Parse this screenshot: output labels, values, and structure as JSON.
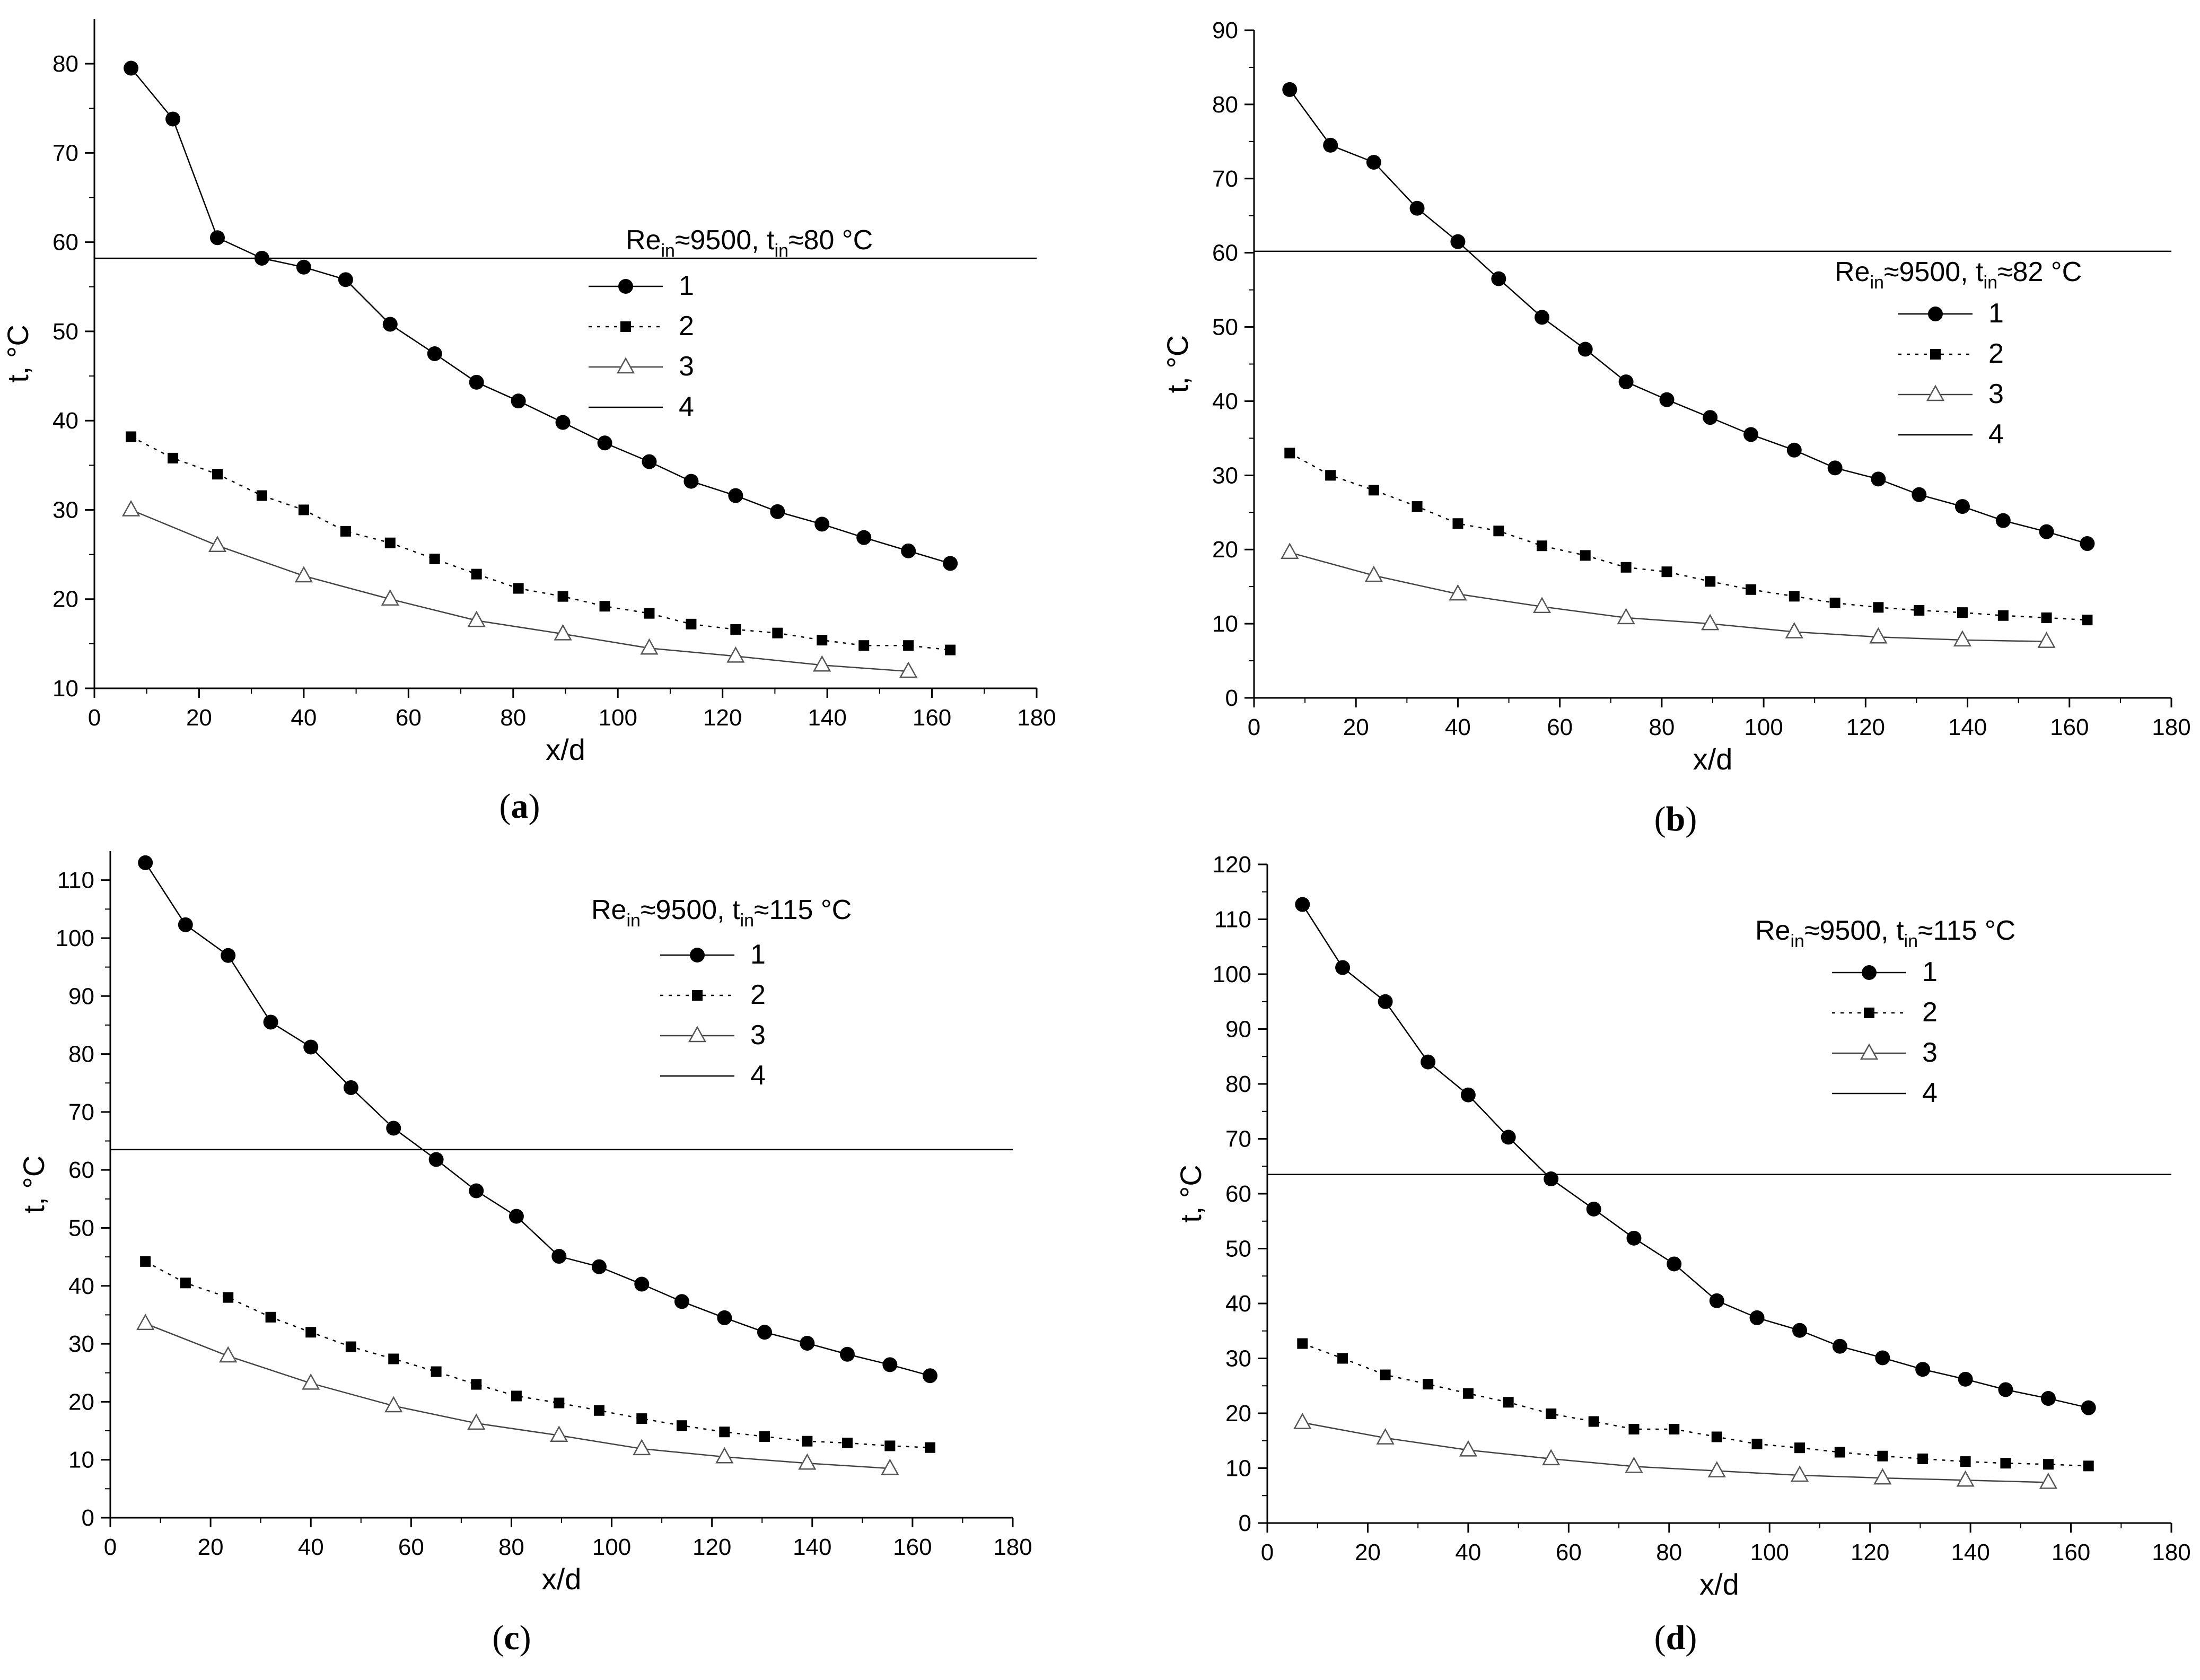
{
  "figure": {
    "panel_labels": [
      "(a)",
      "(b)",
      "(c)",
      "(d)"
    ]
  },
  "chart_data": [
    {
      "type": "line",
      "panel": "a",
      "panel_label_parts": {
        "open": "(",
        "letter": "a",
        "close": ")"
      },
      "xlabel": "x/d",
      "ylabel": "t, °C",
      "xlim": [
        0,
        180
      ],
      "ylim": [
        10,
        85
      ],
      "xticks": [
        0,
        20,
        40,
        60,
        80,
        100,
        120,
        140,
        160,
        180
      ],
      "yticks": [
        10,
        20,
        30,
        40,
        50,
        60,
        70,
        80
      ],
      "legend_title": {
        "re": "Re",
        "re_sub": "in",
        "mid": "≈9500, t",
        "t_sub": "in",
        "value": "≈80 °C"
      },
      "series": [
        {
          "name": "1",
          "marker": "circle",
          "dash": "solid",
          "x": [
            7,
            15,
            23.5,
            32,
            40,
            48,
            56.5,
            65,
            73,
            81,
            89.5,
            97.5,
            106,
            114,
            122.5,
            130.5,
            139,
            147,
            155.5,
            163.5
          ],
          "y": [
            79.5,
            73.8,
            60.5,
            58.2,
            57.2,
            55.8,
            50.8,
            47.5,
            44.3,
            42.2,
            39.8,
            37.5,
            35.4,
            33.2,
            31.6,
            29.8,
            28.4,
            26.9,
            25.4,
            24.0
          ]
        },
        {
          "name": "2",
          "marker": "square",
          "dash": "dotted",
          "x": [
            7,
            15,
            23.5,
            32,
            40,
            48,
            56.5,
            65,
            73,
            81,
            89.5,
            97.5,
            106,
            114,
            122.5,
            130.5,
            139,
            147,
            155.5,
            163.5
          ],
          "y": [
            38.2,
            35.8,
            34.0,
            31.6,
            30.0,
            27.6,
            26.3,
            24.5,
            22.8,
            21.2,
            20.3,
            19.2,
            18.4,
            17.2,
            16.6,
            16.2,
            15.4,
            14.8,
            14.8,
            14.3
          ]
        },
        {
          "name": "3",
          "marker": "triangle",
          "dash": "solid",
          "x": [
            7,
            23.5,
            40,
            56.5,
            73,
            89.5,
            106,
            122.5,
            139,
            155.5
          ],
          "y": [
            30.0,
            26.0,
            22.6,
            20.0,
            17.6,
            16.1,
            14.5,
            13.6,
            12.6,
            11.9
          ]
        },
        {
          "name": "4",
          "marker": "none",
          "dash": "solid",
          "x": [
            0,
            180
          ],
          "y": [
            58.2,
            58.2
          ]
        }
      ]
    },
    {
      "type": "line",
      "panel": "b",
      "panel_label_parts": {
        "open": "(",
        "letter": "b",
        "close": ")"
      },
      "xlabel": "x/d",
      "ylabel": "t, °C",
      "xlim": [
        0,
        180
      ],
      "ylim": [
        0,
        90
      ],
      "xticks": [
        0,
        20,
        40,
        60,
        80,
        100,
        120,
        140,
        160,
        180
      ],
      "yticks": [
        0,
        10,
        20,
        30,
        40,
        50,
        60,
        70,
        80,
        90
      ],
      "legend_title": {
        "re": "Re",
        "re_sub": "in",
        "mid": "≈9500, t",
        "t_sub": "in",
        "value": "≈82 °C"
      },
      "series": [
        {
          "name": "1",
          "marker": "circle",
          "dash": "solid",
          "x": [
            7,
            15,
            23.5,
            32,
            40,
            48,
            56.5,
            65,
            73,
            81,
            89.5,
            97.5,
            106,
            114,
            122.5,
            130.5,
            139,
            147,
            155.5,
            163.5
          ],
          "y": [
            82.0,
            74.5,
            72.2,
            66.0,
            61.5,
            56.5,
            51.3,
            47.0,
            42.6,
            40.2,
            37.8,
            35.5,
            33.4,
            31.0,
            29.5,
            27.4,
            25.8,
            23.9,
            22.4,
            20.8
          ]
        },
        {
          "name": "2",
          "marker": "square",
          "dash": "dotted",
          "x": [
            7,
            15,
            23.5,
            32,
            40,
            48,
            56.5,
            65,
            73,
            81,
            89.5,
            97.5,
            106,
            114,
            122.5,
            130.5,
            139,
            147,
            155.5,
            163.5
          ],
          "y": [
            33.0,
            30.0,
            28.0,
            25.8,
            23.5,
            22.5,
            20.5,
            19.2,
            17.6,
            17.0,
            15.7,
            14.6,
            13.7,
            12.8,
            12.2,
            11.8,
            11.5,
            11.1,
            10.8,
            10.5
          ]
        },
        {
          "name": "3",
          "marker": "triangle",
          "dash": "solid",
          "x": [
            7,
            23.5,
            40,
            56.5,
            73,
            89.5,
            106,
            122.5,
            139,
            155.5
          ],
          "y": [
            19.6,
            16.5,
            14.0,
            12.3,
            10.8,
            10.0,
            8.9,
            8.2,
            7.8,
            7.6
          ]
        },
        {
          "name": "4",
          "marker": "none",
          "dash": "solid",
          "x": [
            0,
            180
          ],
          "y": [
            60.2,
            60.2
          ]
        }
      ]
    },
    {
      "type": "line",
      "panel": "c",
      "panel_label_parts": {
        "open": "(",
        "letter": "c",
        "close": ")"
      },
      "xlabel": "x/d",
      "ylabel": "t, °C",
      "xlim": [
        0,
        180
      ],
      "ylim": [
        0,
        115
      ],
      "xticks": [
        0,
        20,
        40,
        60,
        80,
        100,
        120,
        140,
        160,
        180
      ],
      "yticks": [
        0,
        10,
        20,
        30,
        40,
        50,
        60,
        70,
        80,
        90,
        100,
        110
      ],
      "legend_title": {
        "re": "Re",
        "re_sub": "in",
        "mid": "≈9500, t",
        "t_sub": "in",
        "value": "≈115 °C"
      },
      "series": [
        {
          "name": "1",
          "marker": "circle",
          "dash": "solid",
          "x": [
            7,
            15,
            23.5,
            32,
            40,
            48,
            56.5,
            65,
            73,
            81,
            89.5,
            97.5,
            106,
            114,
            122.5,
            130.5,
            139,
            147,
            155.5,
            163.5
          ],
          "y": [
            113.0,
            102.3,
            97.0,
            85.5,
            81.2,
            74.2,
            67.2,
            61.8,
            56.4,
            52.0,
            45.1,
            43.3,
            40.3,
            37.3,
            34.5,
            32.0,
            30.1,
            28.2,
            26.4,
            24.5
          ]
        },
        {
          "name": "2",
          "marker": "square",
          "dash": "dotted",
          "x": [
            7,
            15,
            23.5,
            32,
            40,
            48,
            56.5,
            65,
            73,
            81,
            89.5,
            97.5,
            106,
            114,
            122.5,
            130.5,
            139,
            147,
            155.5,
            163.5
          ],
          "y": [
            44.2,
            40.5,
            38.0,
            34.6,
            32.0,
            29.5,
            27.4,
            25.2,
            23.0,
            21.0,
            19.8,
            18.5,
            17.1,
            15.9,
            14.8,
            14.0,
            13.2,
            12.9,
            12.4,
            12.1
          ]
        },
        {
          "name": "3",
          "marker": "triangle",
          "dash": "solid",
          "x": [
            7,
            23.5,
            40,
            56.5,
            73,
            89.5,
            106,
            122.5,
            139,
            155.5
          ],
          "y": [
            33.5,
            27.9,
            23.2,
            19.3,
            16.3,
            14.2,
            11.9,
            10.5,
            9.4,
            8.5
          ]
        },
        {
          "name": "4",
          "marker": "none",
          "dash": "solid",
          "x": [
            0,
            180
          ],
          "y": [
            63.5,
            63.5
          ]
        }
      ]
    },
    {
      "type": "line",
      "panel": "d",
      "panel_label_parts": {
        "open": "(",
        "letter": "d",
        "close": ")"
      },
      "xlabel": "x/d",
      "ylabel": "t, °C",
      "xlim": [
        0,
        180
      ],
      "ylim": [
        0,
        120
      ],
      "xticks": [
        0,
        20,
        40,
        60,
        80,
        100,
        120,
        140,
        160,
        180
      ],
      "yticks": [
        0,
        10,
        20,
        30,
        40,
        50,
        60,
        70,
        80,
        90,
        100,
        110,
        120
      ],
      "legend_title": {
        "re": "Re",
        "re_sub": "in",
        "mid": "≈9500, t",
        "t_sub": "in",
        "value": "≈115 °C"
      },
      "series": [
        {
          "name": "1",
          "marker": "circle",
          "dash": "solid",
          "x": [
            7,
            15,
            23.5,
            32,
            40,
            48,
            56.5,
            65,
            73,
            81,
            89.5,
            97.5,
            106,
            114,
            122.5,
            130.5,
            139,
            147,
            155.5,
            163.5
          ],
          "y": [
            112.7,
            101.2,
            95.0,
            84.0,
            78.0,
            70.3,
            62.7,
            57.2,
            51.9,
            47.2,
            40.5,
            37.4,
            35.1,
            32.2,
            30.1,
            28.0,
            26.2,
            24.3,
            22.7,
            21.0
          ]
        },
        {
          "name": "2",
          "marker": "square",
          "dash": "dotted",
          "x": [
            7,
            15,
            23.5,
            32,
            40,
            48,
            56.5,
            65,
            73,
            81,
            89.5,
            97.5,
            106,
            114,
            122.5,
            130.5,
            139,
            147,
            155.5,
            163.5
          ],
          "y": [
            32.7,
            30.0,
            27.0,
            25.3,
            23.6,
            22.0,
            19.9,
            18.5,
            17.1,
            17.1,
            15.7,
            14.4,
            13.7,
            12.9,
            12.2,
            11.7,
            11.2,
            10.9,
            10.7,
            10.4
          ]
        },
        {
          "name": "3",
          "marker": "triangle",
          "dash": "solid",
          "x": [
            7,
            23.5,
            40,
            56.5,
            73,
            89.5,
            106,
            122.5,
            139,
            155.5
          ],
          "y": [
            18.3,
            15.5,
            13.3,
            11.7,
            10.3,
            9.5,
            8.7,
            8.2,
            7.8,
            7.4
          ]
        },
        {
          "name": "4",
          "marker": "none",
          "dash": "solid",
          "x": [
            0,
            180
          ],
          "y": [
            63.5,
            63.5
          ]
        }
      ]
    }
  ]
}
